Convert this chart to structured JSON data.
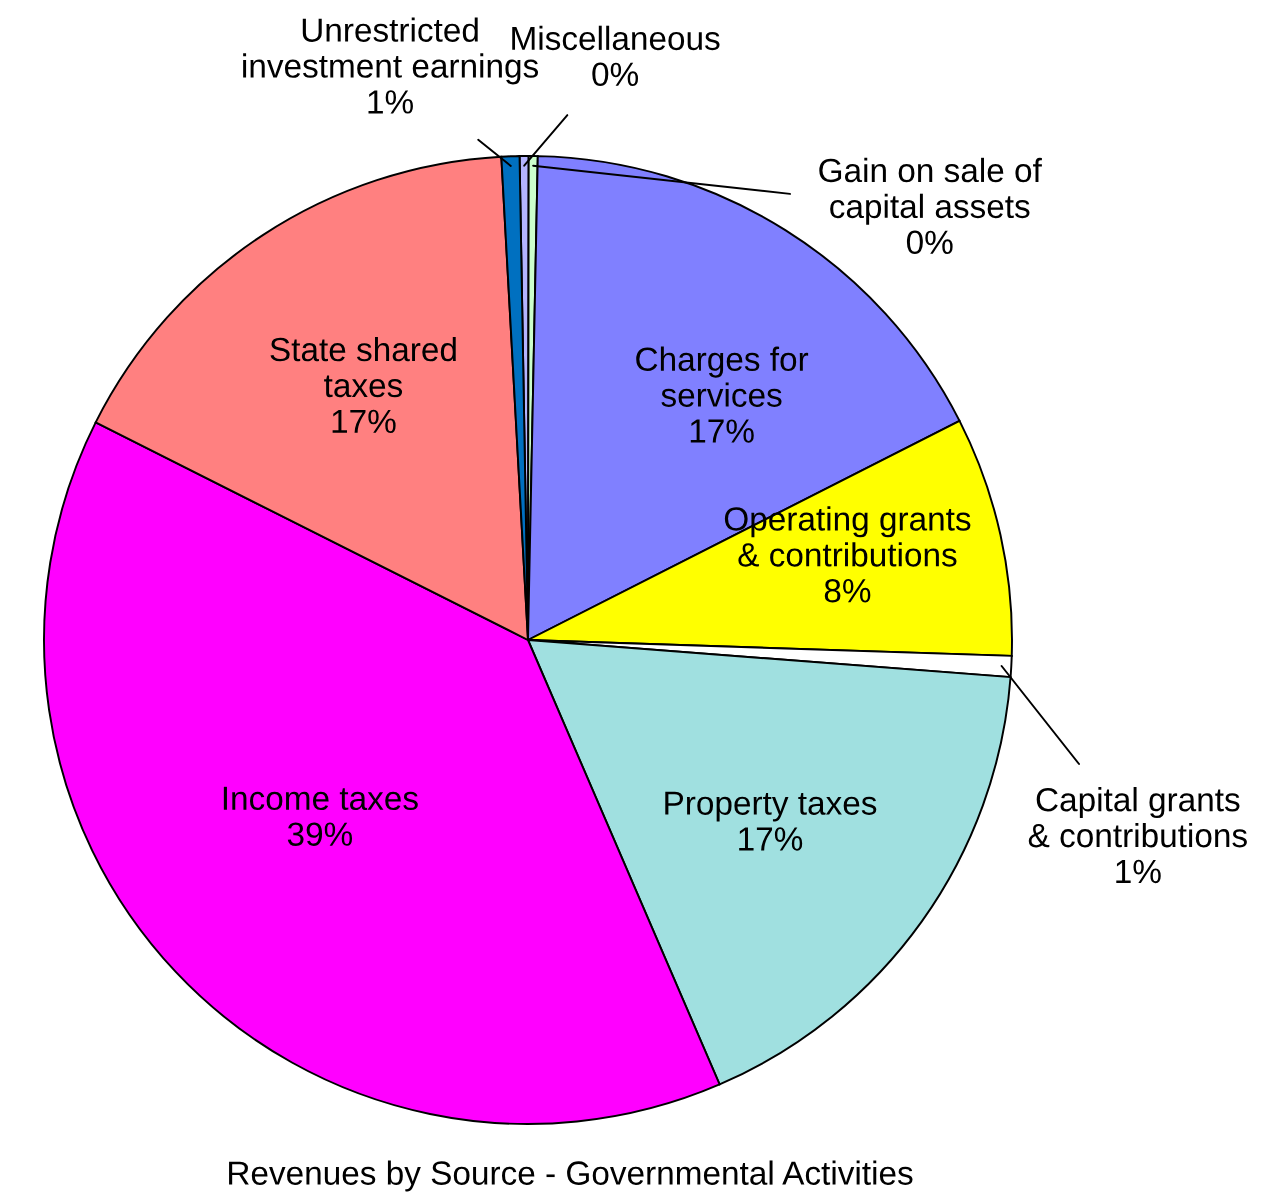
{
  "chart_data": {
    "type": "pie",
    "title": "Revenues by Source - Governmental Activities",
    "categories": [
      "Miscellaneous",
      "Gain on sale of\ncapital assets",
      "Charges for\nservices",
      "Operating grants\n& contributions",
      "Capital grants\n& contributions",
      "Property taxes",
      "Income taxes",
      "State shared\ntaxes",
      "Unrestricted\ninvestment earnings"
    ],
    "values": [
      0.3,
      0.3,
      17.2,
      8.0,
      0.7,
      17.3,
      38.9,
      16.7,
      0.6
    ],
    "value_labels": [
      "0%",
      "0%",
      "17%",
      "8%",
      "1%",
      "17%",
      "39%",
      "17%",
      "1%"
    ],
    "colors": [
      "#b4b4ff",
      "#ccffcc",
      "#8080ff",
      "#ffff00",
      "#ffffff",
      "#a0e0e0",
      "#ff00ff",
      "#ff8080",
      "#0070c0"
    ]
  }
}
